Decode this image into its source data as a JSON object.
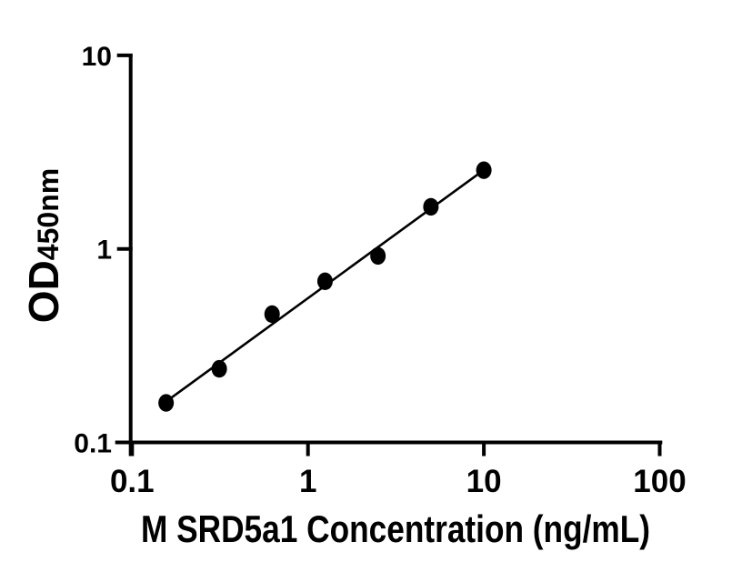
{
  "chart_data": {
    "type": "scatter",
    "title": "",
    "xlabel": "M SRD5a1 Concentration (ng/mL)",
    "ylabel": "OD450nm",
    "ylabel_main": "OD",
    "ylabel_sub": "450nm",
    "x_scale": "log10",
    "y_scale": "log10",
    "xlim": [
      0.1,
      100
    ],
    "ylim": [
      0.1,
      10
    ],
    "x_ticks": [
      0.1,
      1,
      10,
      100
    ],
    "x_tick_labels": [
      "0.1",
      "1",
      "10",
      "100"
    ],
    "y_ticks": [
      0.1,
      1,
      10
    ],
    "y_tick_labels": [
      "0.1",
      "1",
      "10"
    ],
    "series": [
      {
        "x": [
          0.156,
          0.313,
          0.625,
          1.25,
          2.5,
          5,
          10
        ],
        "y": [
          0.16,
          0.24,
          0.46,
          0.68,
          0.92,
          1.65,
          2.55
        ],
        "marker": "filled-circle",
        "color": "#000000"
      }
    ],
    "trendline": {
      "type": "linear fit in log-log (power fit)",
      "color": "#000000",
      "x_start": 0.156,
      "x_end": 10
    },
    "grid": false,
    "legend": null,
    "background": "#ffffff",
    "axis_color": "#000000"
  }
}
